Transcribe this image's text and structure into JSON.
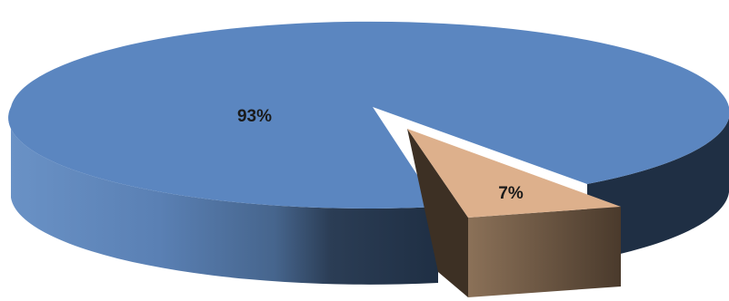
{
  "chart_data": {
    "type": "pie",
    "style": "3d-exploded",
    "slices": [
      {
        "label": "93%",
        "value": 93,
        "color": "#5b86c0"
      },
      {
        "label": "7%",
        "value": 7,
        "color": "#ddb08c"
      }
    ],
    "title": "",
    "legend": "none"
  }
}
